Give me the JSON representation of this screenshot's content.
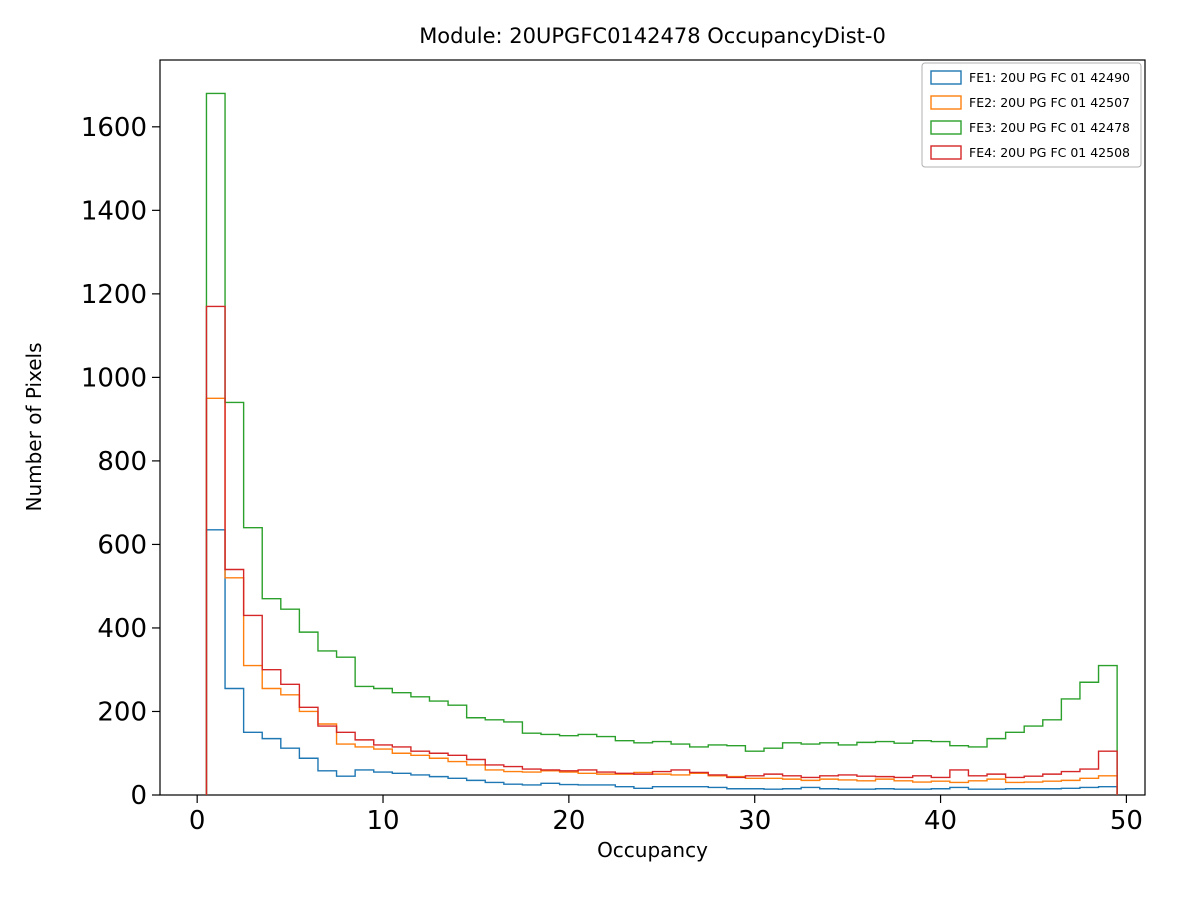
{
  "chart_data": {
    "type": "histogram-step",
    "title": "Module: 20UPGFC0142478 OccupancyDist-0",
    "xlabel": "Occupancy",
    "ylabel": "Number of Pixels",
    "xlim": [
      -2,
      51
    ],
    "ylim": [
      0,
      1760
    ],
    "xticks": [
      0,
      10,
      20,
      30,
      40,
      50
    ],
    "yticks": [
      0,
      200,
      400,
      600,
      800,
      1000,
      1200,
      1400,
      1600
    ],
    "bin_start": 0.5,
    "bin_width": 1,
    "grid": false,
    "legend_position": "upper right",
    "series": [
      {
        "name": "FE1: 20U PG FC 01 42490",
        "color": "#1f77b4",
        "values": [
          635,
          255,
          150,
          135,
          112,
          88,
          58,
          45,
          60,
          55,
          52,
          48,
          44,
          40,
          35,
          30,
          26,
          24,
          28,
          25,
          24,
          24,
          20,
          16,
          20,
          20,
          20,
          18,
          15,
          15,
          14,
          15,
          18,
          15,
          14,
          14,
          15,
          14,
          14,
          15,
          18,
          14,
          14,
          15,
          15,
          15,
          16,
          18,
          20
        ]
      },
      {
        "name": "FE2: 20U PG FC 01 42507",
        "color": "#ff7f0e",
        "values": [
          950,
          520,
          310,
          255,
          240,
          200,
          170,
          122,
          115,
          110,
          100,
          95,
          88,
          80,
          72,
          60,
          56,
          55,
          58,
          55,
          52,
          50,
          50,
          54,
          50,
          48,
          52,
          46,
          44,
          40,
          40,
          38,
          35,
          38,
          36,
          34,
          38,
          34,
          31,
          33,
          30,
          34,
          38,
          30,
          31,
          33,
          35,
          40,
          46
        ]
      },
      {
        "name": "FE3: 20U PG FC 01 42478",
        "color": "#2ca02c",
        "values": [
          1680,
          940,
          640,
          470,
          445,
          390,
          345,
          330,
          260,
          255,
          245,
          235,
          225,
          215,
          185,
          180,
          175,
          148,
          145,
          142,
          145,
          140,
          130,
          125,
          128,
          122,
          115,
          120,
          118,
          105,
          112,
          125,
          122,
          125,
          120,
          126,
          128,
          124,
          130,
          128,
          118,
          115,
          135,
          150,
          165,
          180,
          230,
          270,
          310
        ]
      },
      {
        "name": "FE4: 20U PG FC 01 42508",
        "color": "#d62728",
        "values": [
          1170,
          540,
          430,
          300,
          265,
          210,
          165,
          150,
          132,
          120,
          115,
          105,
          100,
          95,
          85,
          72,
          68,
          62,
          60,
          58,
          60,
          55,
          52,
          50,
          56,
          60,
          54,
          48,
          42,
          46,
          50,
          46,
          42,
          46,
          48,
          45,
          44,
          42,
          46,
          42,
          60,
          46,
          50,
          42,
          45,
          50,
          56,
          62,
          105
        ]
      }
    ]
  }
}
